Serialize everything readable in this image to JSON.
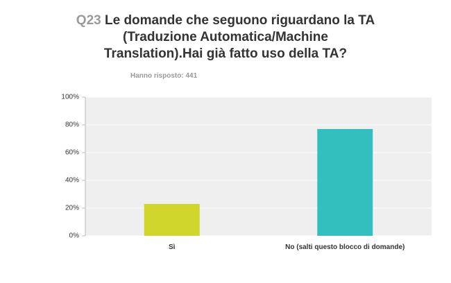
{
  "chart_data": {
    "type": "bar",
    "question_number": "Q23",
    "title": "Le domande che seguono riguardano la TA (Traduzione Automatica/Machine Translation).Hai già fatto uso della TA?",
    "subtitle": "Hanno risposto: 441",
    "categories": [
      "Sì",
      "No (salti questo blocco di domande)"
    ],
    "values": [
      23,
      77
    ],
    "colors": [
      "#d1d62c",
      "#33bfc0"
    ],
    "ylim": [
      0,
      100
    ],
    "yticks": [
      {
        "value": 0,
        "label": "0%"
      },
      {
        "value": 20,
        "label": "20%"
      },
      {
        "value": 40,
        "label": "40%"
      },
      {
        "value": 60,
        "label": "60%"
      },
      {
        "value": 80,
        "label": "80%"
      },
      {
        "value": 100,
        "label": "100%"
      }
    ],
    "grid": true
  }
}
